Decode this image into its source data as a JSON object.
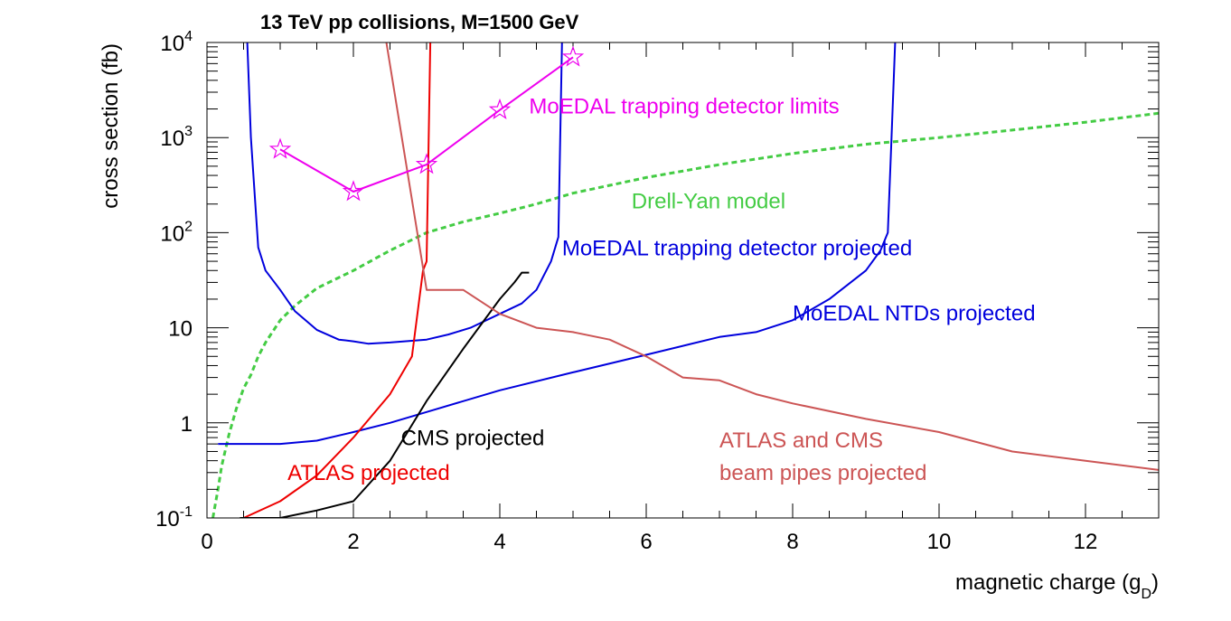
{
  "chart_data": {
    "type": "line",
    "title": "13 TeV pp collisions, M=1500 GeV",
    "xlabel": "magnetic charge (g",
    "xlabel_sub": "D",
    "xlabel_end": ")",
    "ylabel": "cross section (fb)",
    "xlim": [
      0,
      13
    ],
    "ylim": [
      0.1,
      10000
    ],
    "yscale": "log",
    "grid": false,
    "x_ticks": [
      {
        "value": 0,
        "label": "0"
      },
      {
        "value": 2,
        "label": "2"
      },
      {
        "value": 4,
        "label": "4"
      },
      {
        "value": 6,
        "label": "6"
      },
      {
        "value": 8,
        "label": "8"
      },
      {
        "value": 10,
        "label": "10"
      },
      {
        "value": 12,
        "label": "12"
      }
    ],
    "y_ticks": [
      {
        "value": 0.1,
        "base": "10",
        "exp": "-1"
      },
      {
        "value": 1,
        "base": "1",
        "exp": ""
      },
      {
        "value": 10,
        "base": "10",
        "exp": ""
      },
      {
        "value": 100,
        "base": "10",
        "exp": "2"
      },
      {
        "value": 1000,
        "base": "10",
        "exp": "3"
      },
      {
        "value": 10000,
        "base": "10",
        "exp": "4"
      }
    ],
    "series": [
      {
        "name": "Drell-Yan model",
        "color": "#44cc44",
        "style": "dashed",
        "points": [
          [
            0.08,
            0.1
          ],
          [
            0.15,
            0.2
          ],
          [
            0.2,
            0.35
          ],
          [
            0.3,
            0.75
          ],
          [
            0.4,
            1.4
          ],
          [
            0.5,
            2.3
          ],
          [
            0.6,
            3.2
          ],
          [
            0.7,
            5
          ],
          [
            0.8,
            7
          ],
          [
            1.0,
            12
          ],
          [
            1.2,
            17
          ],
          [
            1.5,
            26
          ],
          [
            2.0,
            40
          ],
          [
            2.5,
            65
          ],
          [
            3.0,
            100
          ],
          [
            3.5,
            130
          ],
          [
            4.0,
            160
          ],
          [
            4.5,
            200
          ],
          [
            5.0,
            260
          ],
          [
            6.0,
            380
          ],
          [
            7.0,
            520
          ],
          [
            8.0,
            680
          ],
          [
            9.0,
            850
          ],
          [
            10.0,
            1000
          ],
          [
            11.0,
            1200
          ],
          [
            12.0,
            1450
          ],
          [
            13.0,
            1800
          ]
        ]
      },
      {
        "name": "MoEDAL trapping detector projected",
        "color": "#0000dd",
        "style": "solid",
        "points": [
          [
            0.55,
            10000
          ],
          [
            0.6,
            1000
          ],
          [
            0.7,
            70
          ],
          [
            0.8,
            40
          ],
          [
            1.0,
            25
          ],
          [
            1.2,
            15
          ],
          [
            1.5,
            9.5
          ],
          [
            1.8,
            7.5
          ],
          [
            2.0,
            7.2
          ],
          [
            2.2,
            6.8
          ],
          [
            2.5,
            7
          ],
          [
            3.0,
            7.5
          ],
          [
            3.3,
            8.5
          ],
          [
            3.6,
            10
          ],
          [
            4.0,
            14
          ],
          [
            4.3,
            18
          ],
          [
            4.5,
            25
          ],
          [
            4.7,
            50
          ],
          [
            4.8,
            90
          ],
          [
            4.85,
            10000
          ]
        ]
      },
      {
        "name": "MoEDAL NTDs projected",
        "color": "#0000dd",
        "style": "solid",
        "points": [
          [
            0.15,
            0.6
          ],
          [
            1.0,
            0.6
          ],
          [
            1.5,
            0.65
          ],
          [
            2.0,
            0.8
          ],
          [
            2.5,
            1.0
          ],
          [
            3.0,
            1.3
          ],
          [
            4.0,
            2.2
          ],
          [
            5.0,
            3.4
          ],
          [
            6.0,
            5.2
          ],
          [
            7.0,
            8
          ],
          [
            7.5,
            9
          ],
          [
            8.0,
            12
          ],
          [
            8.5,
            20
          ],
          [
            9.0,
            40
          ],
          [
            9.2,
            65
          ],
          [
            9.3,
            100
          ],
          [
            9.35,
            1000
          ],
          [
            9.4,
            10000
          ]
        ]
      },
      {
        "name": "ATLAS projected",
        "color": "#ee0000",
        "style": "solid",
        "points": [
          [
            0.5,
            0.1
          ],
          [
            1.0,
            0.15
          ],
          [
            1.5,
            0.28
          ],
          [
            2.0,
            0.7
          ],
          [
            2.5,
            2.0
          ],
          [
            2.8,
            5
          ],
          [
            2.95,
            40
          ],
          [
            3.0,
            50
          ],
          [
            3.05,
            10000
          ]
        ]
      },
      {
        "name": "CMS projected",
        "color": "#000000",
        "style": "solid",
        "points": [
          [
            0.45,
            0.1
          ],
          [
            1.0,
            0.1
          ],
          [
            1.5,
            0.12
          ],
          [
            2.0,
            0.15
          ],
          [
            2.5,
            0.4
          ],
          [
            3.0,
            1.7
          ],
          [
            3.5,
            6
          ],
          [
            4.0,
            20
          ],
          [
            4.2,
            30
          ],
          [
            4.3,
            38
          ],
          [
            4.4,
            38
          ]
        ]
      },
      {
        "name": "ATLAS and CMS beam pipes projected",
        "color": "#cc5555",
        "style": "solid",
        "points": [
          [
            2.45,
            10000
          ],
          [
            3.0,
            25
          ],
          [
            3.5,
            25
          ],
          [
            4.0,
            14
          ],
          [
            4.5,
            10
          ],
          [
            5.0,
            9
          ],
          [
            5.5,
            7.5
          ],
          [
            6.0,
            5
          ],
          [
            6.5,
            3
          ],
          [
            7.0,
            2.8
          ],
          [
            7.5,
            2
          ],
          [
            8.0,
            1.6
          ],
          [
            9.0,
            1.1
          ],
          [
            10.0,
            0.8
          ],
          [
            11.0,
            0.5
          ],
          [
            12.0,
            0.4
          ],
          [
            13.0,
            0.32
          ]
        ]
      },
      {
        "name": "MoEDAL trapping detector limits",
        "color": "#ee00ee",
        "style": "solid",
        "markers": "star",
        "points": [
          [
            1,
            750
          ],
          [
            2,
            270
          ],
          [
            3,
            520
          ],
          [
            4,
            1950
          ],
          [
            5,
            7000
          ]
        ]
      }
    ],
    "annotations": [
      {
        "text": "MoEDAL trapping detector limits",
        "x": 4.4,
        "y": 1800,
        "color": "#ee00ee"
      },
      {
        "text": "Drell-Yan model",
        "x": 5.8,
        "y": 180,
        "color": "#44cc44"
      },
      {
        "text": "MoEDAL trapping detector projected",
        "x": 4.85,
        "y": 58,
        "color": "#0000dd"
      },
      {
        "text": "MoEDAL NTDs projected",
        "x": 8.0,
        "y": 12,
        "color": "#0000dd"
      },
      {
        "text": "CMS projected",
        "x": 2.65,
        "y": 0.58,
        "color": "#000000"
      },
      {
        "text": "ATLAS and CMS",
        "x": 7.0,
        "y": 0.55,
        "color": "#cc5555"
      },
      {
        "text": "beam pipes projected",
        "x": 7.0,
        "y": 0.25,
        "color": "#cc5555"
      },
      {
        "text": "ATLAS projected",
        "x": 1.1,
        "y": 0.25,
        "color": "#ee0000"
      }
    ]
  }
}
